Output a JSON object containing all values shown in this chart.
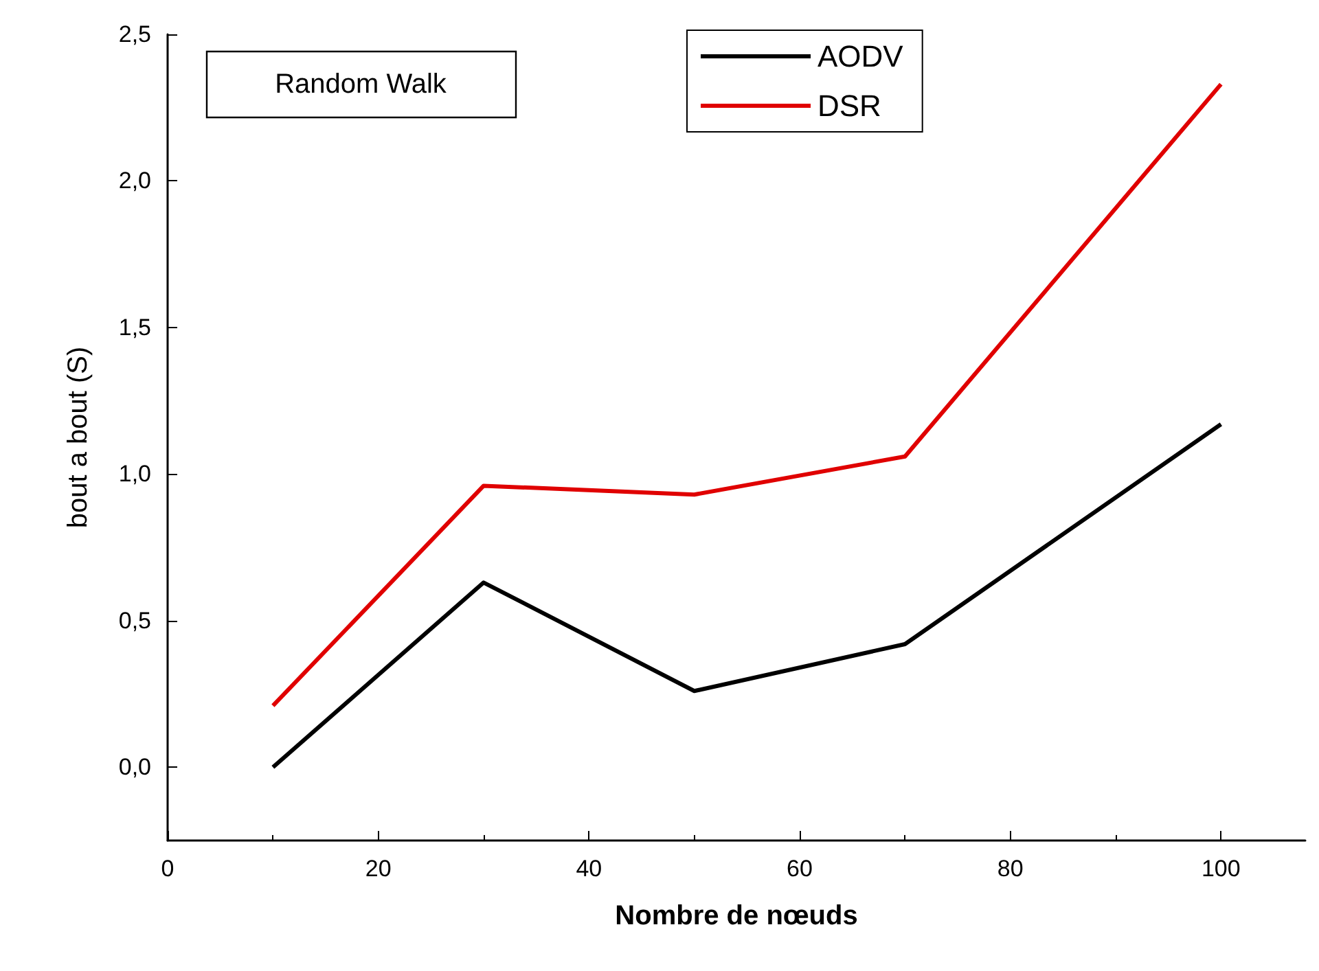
{
  "chart_data": {
    "type": "line",
    "xlabel": "Nombre de nœuds",
    "ylabel": "bout a bout (S)",
    "annotations": [
      "Random Walk"
    ],
    "x": [
      10,
      30,
      50,
      70,
      100
    ],
    "series": [
      {
        "name": "AODV",
        "color": "#000000",
        "values": [
          0.0,
          0.63,
          0.26,
          0.42,
          1.17
        ]
      },
      {
        "name": "DSR",
        "color": "#e00000",
        "values": [
          0.21,
          0.96,
          0.93,
          1.06,
          2.33
        ]
      }
    ],
    "xlim": [
      0,
      108
    ],
    "xticks": [
      0,
      20,
      40,
      60,
      80,
      100
    ],
    "ylim": [
      -0.25,
      2.5
    ],
    "yticks": [
      {
        "value": 0,
        "label": "0,0"
      },
      {
        "value": 0.5,
        "label": "0,5"
      },
      {
        "value": 1,
        "label": "1,0"
      },
      {
        "value": 1.5,
        "label": "1,5"
      },
      {
        "value": 2,
        "label": "2,0"
      },
      {
        "value": 2.5,
        "label": "2,5"
      }
    ],
    "grid": false,
    "legend": "top",
    "marker": "none",
    "line_style": "solid"
  }
}
